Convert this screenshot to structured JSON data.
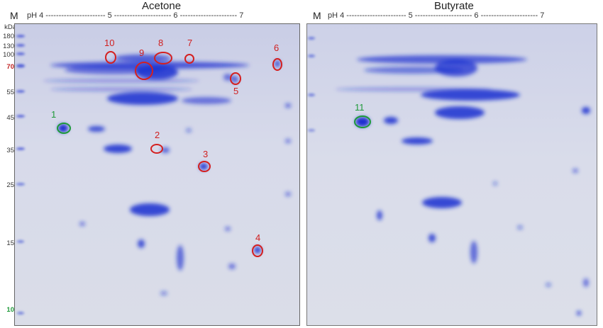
{
  "panels": [
    {
      "title": "Acetone",
      "ph_axis": "pH 4 ----------------------- 5 ---------------------- 6 ---------------------- 7",
      "marker": "M",
      "mw_unit": "kDa",
      "mw_ladder": [
        "180",
        "130",
        "100",
        "70",
        "55",
        "45",
        "35",
        "25",
        "15",
        "10"
      ],
      "spot_labels": [
        "1",
        "2",
        "3",
        "4",
        "5",
        "6",
        "7",
        "8",
        "9",
        "10"
      ]
    },
    {
      "title": "Butyrate",
      "ph_axis": "pH 4 ----------------------- 5 ---------------------- 6 ---------------------- 7",
      "marker": "M",
      "spot_labels": [
        "11"
      ]
    }
  ],
  "colors": {
    "stain": "#1a2fd0",
    "circle_red": "#d42020",
    "circle_green": "#1f9a3a"
  }
}
